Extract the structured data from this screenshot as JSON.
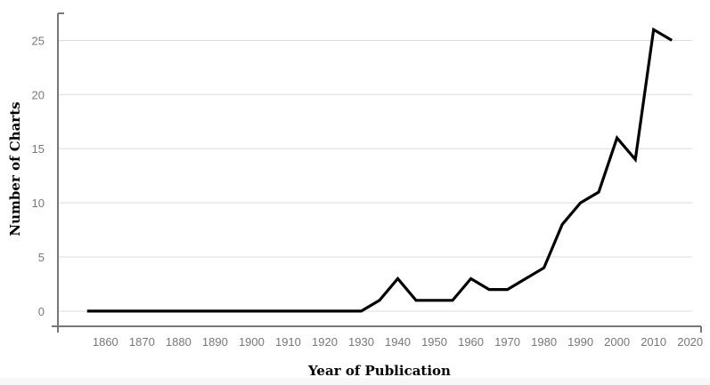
{
  "chart_data": {
    "type": "line",
    "title": "",
    "xlabel": "Year of Publication",
    "ylabel": "Number of Charts",
    "x": [
      1855,
      1860,
      1865,
      1870,
      1875,
      1880,
      1885,
      1890,
      1895,
      1900,
      1905,
      1910,
      1915,
      1920,
      1925,
      1930,
      1935,
      1940,
      1945,
      1950,
      1955,
      1960,
      1965,
      1970,
      1975,
      1980,
      1985,
      1990,
      1995,
      2000,
      2005,
      2010,
      2015
    ],
    "series": [
      {
        "values": [
          0,
          0,
          0,
          0,
          0,
          0,
          0,
          0,
          0,
          0,
          0,
          0,
          0,
          0,
          0,
          0,
          1,
          3,
          1,
          1,
          1,
          3,
          2,
          2,
          3,
          4,
          8,
          10,
          11,
          16,
          14,
          26,
          25
        ]
      }
    ],
    "xticks": [
      1860,
      1870,
      1880,
      1890,
      1900,
      1910,
      1920,
      1930,
      1940,
      1950,
      1960,
      1970,
      1980,
      1990,
      2000,
      2010,
      2020
    ],
    "yticks": [
      0,
      5,
      10,
      15,
      20,
      25
    ],
    "xlim": [
      1847,
      2023
    ],
    "ylim": [
      -1.4,
      27.5
    ],
    "grid": "horizontal",
    "colors": {
      "line": "#000000",
      "grid": "#dddddd",
      "axis": "#777777",
      "tick_label": "#777777"
    }
  }
}
